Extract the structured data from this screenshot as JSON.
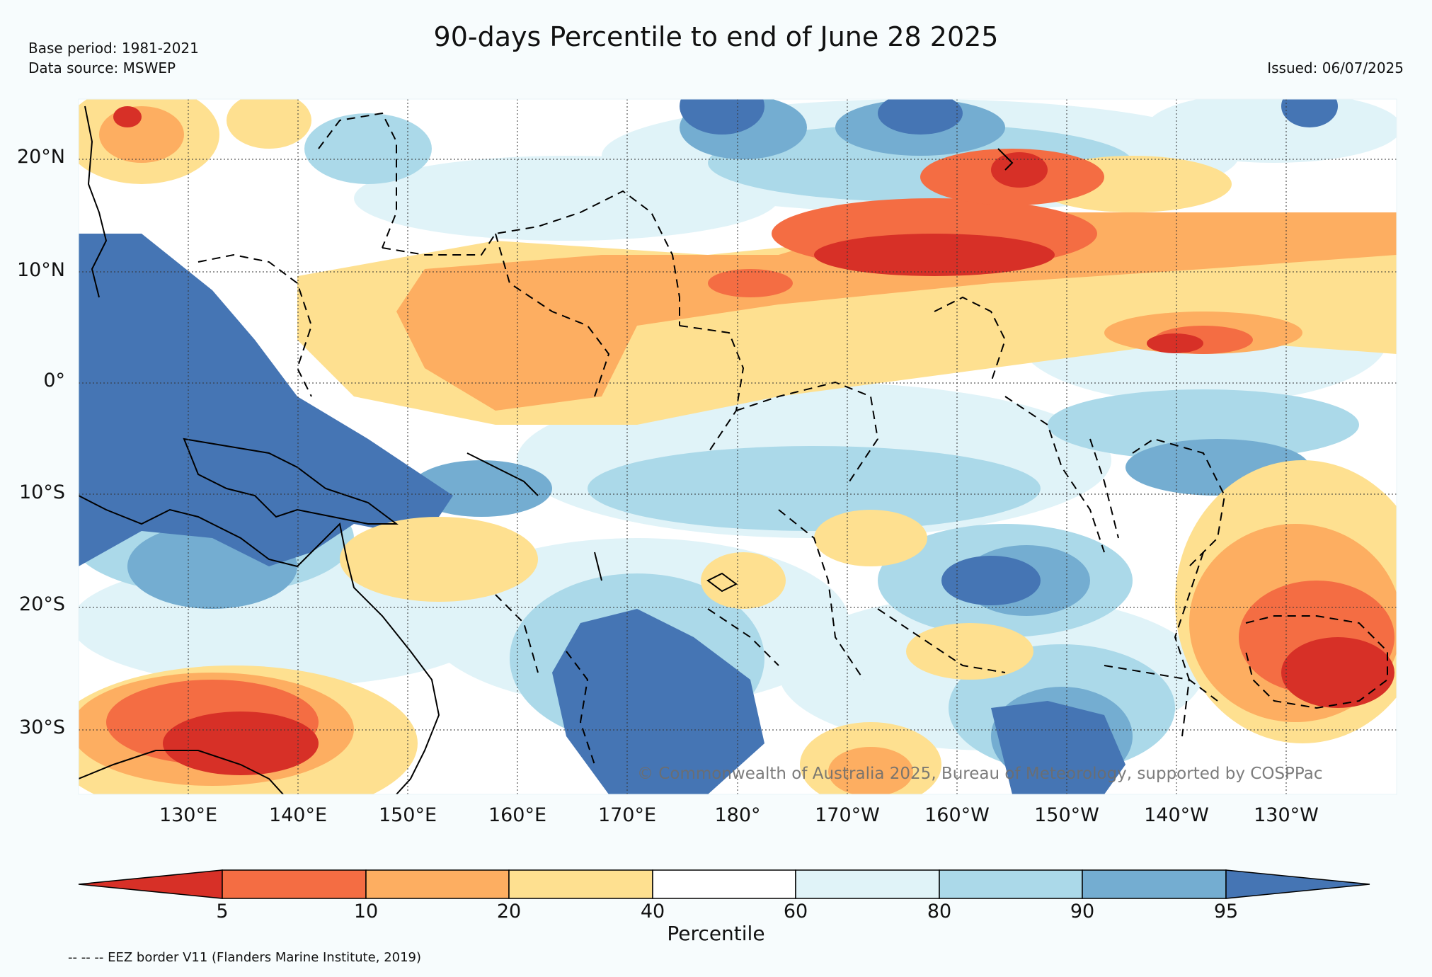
{
  "header": {
    "title": "90-days Percentile to end of June 28 2025",
    "base_period": "Base period: 1981-2021",
    "data_source": "Data source: MSWEP",
    "issued": "Issued: 06/07/2025"
  },
  "map": {
    "lat_labels": [
      "20°N",
      "10°N",
      "0°",
      "10°S",
      "20°S",
      "30°S"
    ],
    "lon_labels": [
      "130°E",
      "140°E",
      "150°E",
      "160°E",
      "170°E",
      "180°",
      "170°W",
      "160°W",
      "150°W",
      "140°W",
      "130°W"
    ],
    "copyright": "© Commonwealth of Australia 2025, Bureau of Meteorology, supported by COSPPac"
  },
  "colorbar": {
    "title": "Percentile",
    "ticks": [
      "5",
      "10",
      "20",
      "40",
      "60",
      "80",
      "90",
      "95"
    ],
    "colors": [
      "#d73027",
      "#f46d43",
      "#fdae61",
      "#fee090",
      "#ffffff",
      "#e0f3f8",
      "#abd9e9",
      "#74add1",
      "#4575b4"
    ]
  },
  "footnote": "-- -- -- EEZ border V11 (Flanders Marine Institute, 2019)"
}
